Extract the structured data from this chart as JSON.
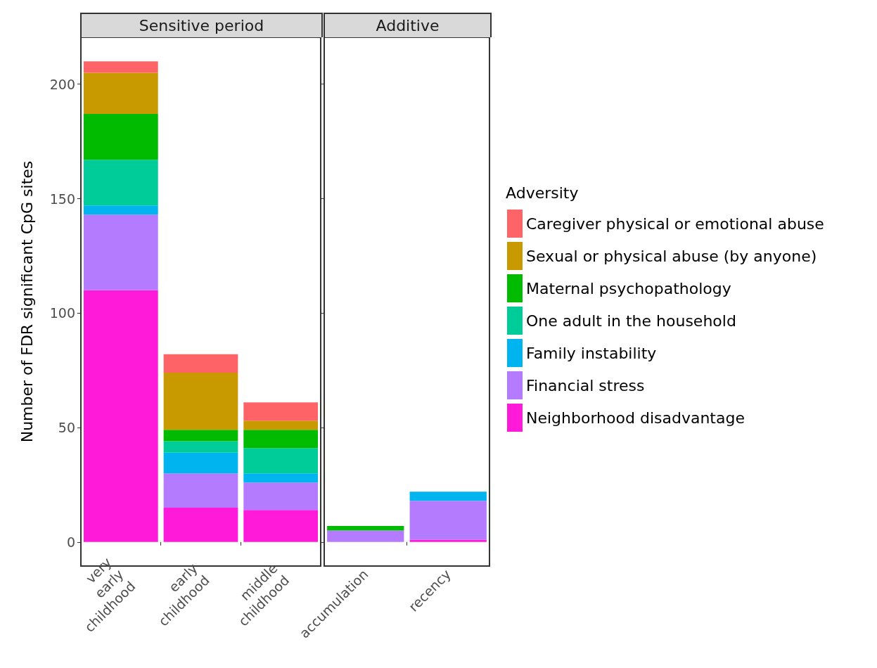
{
  "chart_data": [
    {
      "type": "bar",
      "title": "Sensitive period",
      "ylabel": "Number of FDR significant CpG sites",
      "categories": [
        "very early childhood",
        "early childhood",
        "middle childhood"
      ],
      "stacked": true,
      "ylim": [
        -10.5,
        220.5
      ],
      "yticks": [
        0,
        50,
        100,
        150,
        200
      ],
      "grid": false,
      "legend": false,
      "series": [
        {
          "color": "#ff19d9",
          "values": [
            110,
            15,
            14
          ]
        },
        {
          "color": "#b47aff",
          "values": [
            33,
            15,
            12
          ]
        },
        {
          "color": "#00b4ef",
          "values": [
            4,
            9,
            4
          ]
        },
        {
          "color": "#00cc99",
          "values": [
            20,
            5,
            11
          ]
        },
        {
          "color": "#00bb00",
          "values": [
            20,
            5,
            8
          ]
        },
        {
          "color": "#c99a00",
          "values": [
            18,
            25,
            4
          ]
        },
        {
          "color": "#fe6467",
          "values": [
            5,
            8,
            8
          ]
        }
      ]
    },
    {
      "type": "bar",
      "title": "Additive",
      "categories": [
        "accumulation",
        "recency"
      ],
      "stacked": true,
      "ylim": [
        -10.5,
        220.5
      ],
      "yticks": [
        0,
        50,
        100,
        150,
        200
      ],
      "grid": false,
      "tick_labels": "x",
      "legend": "right",
      "legend_title": "Adversity",
      "series": [
        {
          "name": "Neighborhood disadvantage",
          "color": "#ff19d9",
          "values": [
            0,
            1
          ]
        },
        {
          "name": "Financial stress",
          "color": "#b47aff",
          "values": [
            5,
            17
          ]
        },
        {
          "name": "Family instability",
          "color": "#00b4ef",
          "values": [
            0,
            4
          ]
        },
        {
          "name": "One adult in the household",
          "color": "#00cc99",
          "values": [
            0,
            0
          ]
        },
        {
          "name": "Maternal psychopathology",
          "color": "#00bb00",
          "values": [
            2,
            0
          ]
        },
        {
          "name": "Sexual or physical abuse (by anyone)",
          "color": "#c99a00",
          "values": [
            0,
            0
          ]
        },
        {
          "name": "Caregiver physical or emotional abuse",
          "color": "#fe6467",
          "values": [
            0,
            0
          ]
        }
      ]
    }
  ]
}
